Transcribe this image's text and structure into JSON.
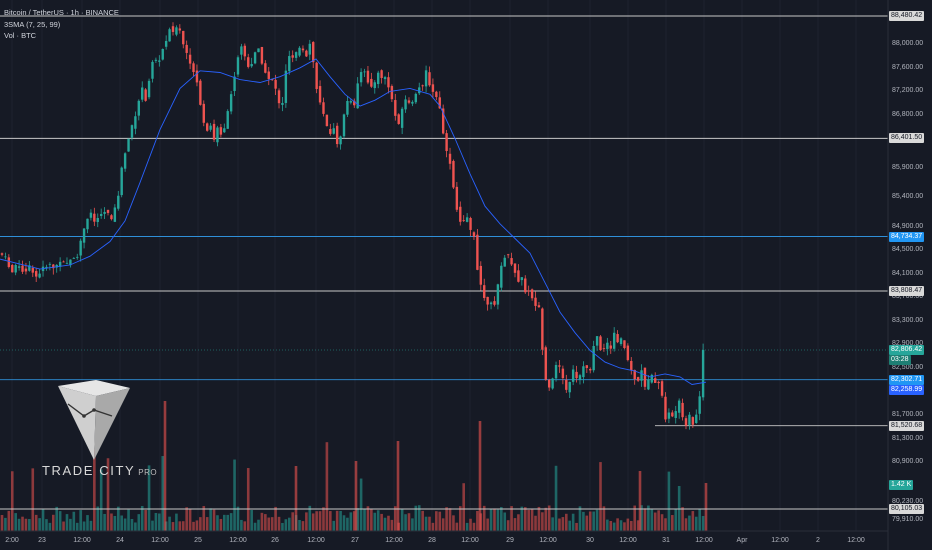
{
  "header": {
    "symbol_line": "Bitcoin / TetherUS · 1h · BINANCE",
    "indicator_sma": "3SMA (7, 25, 99)",
    "indicator_vol": "Vol · BTC"
  },
  "logo": {
    "brand": "TRADE CITY",
    "suffix": "PRO"
  },
  "colors": {
    "bg": "#161a25",
    "up": "#26a69a",
    "down": "#ef5350",
    "sma": "#2962ff",
    "level_white": "#c8c8c8",
    "level_blue": "#2f8fd8"
  },
  "price_axis": {
    "ticks": [
      "88,000.00",
      "87,600.00",
      "87,200.00",
      "86,800.00",
      "85,900.00",
      "85,400.00",
      "84,900.00",
      "84,500.00",
      "84,100.00",
      "83,700.00",
      "83,300.00",
      "82,900.00",
      "82,500.00",
      "81,700.00",
      "81,300.00",
      "80,900.00",
      "80,230.00",
      "79,910.00"
    ],
    "labels": [
      {
        "text": "88,480.42",
        "kind": "white"
      },
      {
        "text": "86,401.50",
        "kind": "white"
      },
      {
        "text": "84,734.37",
        "kind": "blue"
      },
      {
        "text": "83,808.47",
        "kind": "white"
      },
      {
        "text": "82,806.42",
        "kind": "green"
      },
      {
        "text": "03:28",
        "kind": "green-dark"
      },
      {
        "text": "82,302.71",
        "kind": "blue"
      },
      {
        "text": "82,258.99",
        "kind": "blue-strong"
      },
      {
        "text": "81,520.68",
        "kind": "white"
      },
      {
        "text": "1.42 K",
        "kind": "green"
      },
      {
        "text": "80,105.03",
        "kind": "white"
      }
    ]
  },
  "time_axis": [
    "2:00",
    "23",
    "12:00",
    "24",
    "12:00",
    "25",
    "12:00",
    "26",
    "12:00",
    "27",
    "12:00",
    "28",
    "12:00",
    "29",
    "12:00",
    "30",
    "12:00",
    "31",
    "12:00",
    "Apr",
    "12:00",
    "2",
    "12:00"
  ],
  "chart_data": {
    "type": "candlestick",
    "symbol": "BTCUSDT",
    "timeframe": "1h",
    "horizontal_levels": [
      88480.42,
      86401.5,
      84734.37,
      83808.47,
      82302.71,
      81520.68,
      80105.03
    ],
    "last_price": 82806.42,
    "sma_value": 82258.99,
    "last_volume": "1.42 K",
    "y_range": [
      79850,
      88560
    ],
    "price_path": [
      [
        0,
        84450
      ],
      [
        6,
        84360
      ],
      [
        12,
        84120
      ],
      [
        18,
        84280
      ],
      [
        24,
        84120
      ],
      [
        30,
        84240
      ],
      [
        36,
        84050
      ],
      [
        42,
        84170
      ],
      [
        48,
        84280
      ],
      [
        54,
        84190
      ],
      [
        60,
        84330
      ],
      [
        66,
        84240
      ],
      [
        72,
        84380
      ],
      [
        78,
        84420
      ],
      [
        82,
        84760
      ],
      [
        86,
        84990
      ],
      [
        90,
        85150
      ],
      [
        94,
        84980
      ],
      [
        100,
        85090
      ],
      [
        106,
        85180
      ],
      [
        112,
        85000
      ],
      [
        118,
        85410
      ],
      [
        122,
        85920
      ],
      [
        126,
        86250
      ],
      [
        130,
        86500
      ],
      [
        134,
        86700
      ],
      [
        138,
        87000
      ],
      [
        142,
        87250
      ],
      [
        146,
        87050
      ],
      [
        150,
        87500
      ],
      [
        154,
        87800
      ],
      [
        158,
        87650
      ],
      [
        162,
        87900
      ],
      [
        166,
        88050
      ],
      [
        170,
        88300
      ],
      [
        174,
        88150
      ],
      [
        178,
        88380
      ],
      [
        182,
        88050
      ],
      [
        186,
        87900
      ],
      [
        190,
        87650
      ],
      [
        194,
        87550
      ],
      [
        198,
        87300
      ],
      [
        202,
        86800
      ],
      [
        206,
        86500
      ],
      [
        210,
        86700
      ],
      [
        214,
        86350
      ],
      [
        218,
        86600
      ],
      [
        222,
        86450
      ],
      [
        226,
        86700
      ],
      [
        230,
        87100
      ],
      [
        234,
        87400
      ],
      [
        238,
        87800
      ],
      [
        242,
        88000
      ],
      [
        246,
        87700
      ],
      [
        250,
        87600
      ],
      [
        254,
        87800
      ],
      [
        258,
        87950
      ],
      [
        262,
        87700
      ],
      [
        266,
        87500
      ],
      [
        270,
        87350
      ],
      [
        274,
        87400
      ],
      [
        278,
        87000
      ],
      [
        282,
        86950
      ],
      [
        286,
        87550
      ],
      [
        290,
        87850
      ],
      [
        294,
        87700
      ],
      [
        298,
        87950
      ],
      [
        302,
        87950
      ],
      [
        306,
        87800
      ],
      [
        310,
        88050
      ],
      [
        314,
        87600
      ],
      [
        318,
        87100
      ],
      [
        322,
        86900
      ],
      [
        326,
        86600
      ],
      [
        330,
        86500
      ],
      [
        334,
        86600
      ],
      [
        338,
        86200
      ],
      [
        342,
        86600
      ],
      [
        346,
        87000
      ],
      [
        350,
        87100
      ],
      [
        354,
        86900
      ],
      [
        358,
        87400
      ],
      [
        362,
        87600
      ],
      [
        366,
        87500
      ],
      [
        370,
        87250
      ],
      [
        374,
        87300
      ],
      [
        378,
        87550
      ],
      [
        382,
        87400
      ],
      [
        386,
        87450
      ],
      [
        390,
        87200
      ],
      [
        394,
        86900
      ],
      [
        398,
        86550
      ],
      [
        402,
        86900
      ],
      [
        406,
        87100
      ],
      [
        410,
        86950
      ],
      [
        414,
        87100
      ],
      [
        418,
        87300
      ],
      [
        422,
        87200
      ],
      [
        426,
        87550
      ],
      [
        430,
        87300
      ],
      [
        434,
        87150
      ],
      [
        438,
        87100
      ],
      [
        442,
        86650
      ],
      [
        446,
        86200
      ],
      [
        450,
        86000
      ],
      [
        454,
        85500
      ],
      [
        458,
        85100
      ],
      [
        462,
        84900
      ],
      [
        466,
        85100
      ],
      [
        470,
        84850
      ],
      [
        474,
        84750
      ],
      [
        478,
        84100
      ],
      [
        482,
        83850
      ],
      [
        486,
        83550
      ],
      [
        490,
        83700
      ],
      [
        494,
        83500
      ],
      [
        498,
        83900
      ],
      [
        502,
        84300
      ],
      [
        506,
        84450
      ],
      [
        510,
        84350
      ],
      [
        514,
        84200
      ],
      [
        518,
        83950
      ],
      [
        522,
        84050
      ],
      [
        526,
        83750
      ],
      [
        530,
        83850
      ],
      [
        534,
        83500
      ],
      [
        538,
        83700
      ],
      [
        542,
        82900
      ],
      [
        546,
        82300
      ],
      [
        550,
        82150
      ],
      [
        554,
        82450
      ],
      [
        558,
        82600
      ],
      [
        562,
        82350
      ],
      [
        566,
        82100
      ],
      [
        570,
        82300
      ],
      [
        574,
        82500
      ],
      [
        578,
        82200
      ],
      [
        582,
        82550
      ],
      [
        586,
        82500
      ],
      [
        590,
        82400
      ],
      [
        594,
        82950
      ],
      [
        598,
        83050
      ],
      [
        602,
        82700
      ],
      [
        606,
        82950
      ],
      [
        610,
        82800
      ],
      [
        614,
        83100
      ],
      [
        618,
        82900
      ],
      [
        622,
        83000
      ],
      [
        626,
        82750
      ],
      [
        630,
        82500
      ],
      [
        634,
        82350
      ],
      [
        638,
        82300
      ],
      [
        642,
        82500
      ],
      [
        646,
        82050
      ],
      [
        650,
        82450
      ],
      [
        654,
        82250
      ],
      [
        658,
        82300
      ],
      [
        662,
        82050
      ],
      [
        666,
        81550
      ],
      [
        670,
        81800
      ],
      [
        674,
        81600
      ],
      [
        678,
        82000
      ],
      [
        682,
        81700
      ],
      [
        686,
        81550
      ],
      [
        690,
        81700
      ],
      [
        694,
        81500
      ],
      [
        698,
        81900
      ],
      [
        702,
        82200
      ],
      [
        706,
        82806
      ]
    ],
    "sma_path": [
      [
        0,
        84350
      ],
      [
        40,
        84180
      ],
      [
        70,
        84250
      ],
      [
        90,
        84400
      ],
      [
        110,
        84650
      ],
      [
        125,
        85000
      ],
      [
        140,
        85650
      ],
      [
        160,
        86550
      ],
      [
        180,
        87250
      ],
      [
        200,
        87550
      ],
      [
        220,
        87520
      ],
      [
        240,
        87400
      ],
      [
        260,
        87350
      ],
      [
        280,
        87450
      ],
      [
        300,
        87600
      ],
      [
        316,
        87750
      ],
      [
        330,
        87450
      ],
      [
        345,
        87150
      ],
      [
        360,
        86950
      ],
      [
        375,
        87050
      ],
      [
        390,
        87200
      ],
      [
        410,
        87250
      ],
      [
        430,
        87150
      ],
      [
        440,
        86950
      ],
      [
        455,
        86400
      ],
      [
        470,
        85800
      ],
      [
        485,
        85250
      ],
      [
        500,
        84950
      ],
      [
        515,
        84700
      ],
      [
        530,
        84450
      ],
      [
        545,
        83950
      ],
      [
        560,
        83450
      ],
      [
        575,
        83100
      ],
      [
        590,
        82800
      ],
      [
        605,
        82600
      ],
      [
        620,
        82500
      ],
      [
        635,
        82450
      ],
      [
        650,
        82350
      ],
      [
        665,
        82400
      ],
      [
        680,
        82350
      ],
      [
        692,
        82220
      ],
      [
        706,
        82259
      ]
    ]
  }
}
